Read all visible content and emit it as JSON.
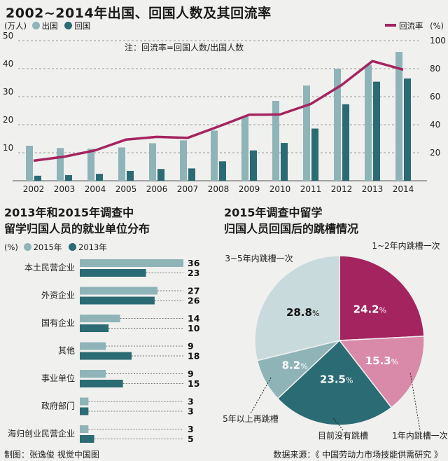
{
  "top": {
    "title": "2002~2014年出国、回国人数及其回流率",
    "unit_left": "(万人)",
    "legend_out": "出国",
    "legend_back": "回国",
    "legend_rate": "回流率",
    "unit_right": "(%)",
    "note": "注：回流率=回国人数/出国人数"
  },
  "chart_data": [
    {
      "type": "bar",
      "title": "2002~2014年出国、回国人数及其回流率",
      "categories": [
        "2002",
        "2003",
        "2004",
        "2005",
        "2006",
        "2007",
        "2008",
        "2009",
        "2010",
        "2011",
        "2012",
        "2013",
        "2014"
      ],
      "series": [
        {
          "name": "出国",
          "axis": "left",
          "values": [
            12.5,
            11.7,
            11.4,
            11.9,
            13.4,
            14.4,
            17.9,
            23.0,
            28.5,
            33.97,
            39.96,
            41.39,
            45.98
          ]
        },
        {
          "name": "回国",
          "axis": "left",
          "values": [
            1.79,
            2.01,
            2.47,
            3.5,
            4.2,
            4.4,
            6.93,
            10.83,
            13.48,
            18.62,
            27.29,
            35.35,
            36.48
          ]
        },
        {
          "name": "回流率",
          "type": "line",
          "axis": "right",
          "values": [
            14.3,
            17.2,
            21.7,
            29.4,
            31.3,
            30.6,
            38.7,
            47.1,
            47.3,
            54.8,
            68.3,
            85.4,
            79.3
          ]
        }
      ],
      "y_left": {
        "range": [
          0,
          50
        ],
        "ticks": [
          10,
          20,
          30,
          40,
          50
        ]
      },
      "y_right": {
        "range": [
          0,
          100
        ],
        "ticks": [
          20,
          40,
          60,
          80,
          100
        ]
      },
      "colors": {
        "out": "#8fb4b8",
        "back": "#2a6b74",
        "rate": "#a4245f"
      }
    },
    {
      "type": "bar",
      "orientation": "horizontal",
      "title": "2013年和2015年调查中留学归国人员的就业单位分布",
      "categories": [
        "本土民营企业",
        "外资企业",
        "国有企业",
        "其他",
        "事业单位",
        "政府部门",
        "海归创业民营企业"
      ],
      "series": [
        {
          "name": "2015年",
          "values": [
            36,
            27,
            14,
            9,
            9,
            3,
            3
          ]
        },
        {
          "name": "2013年",
          "values": [
            23,
            26,
            10,
            18,
            15,
            3,
            5
          ]
        }
      ],
      "unit": "(%)",
      "colors": {
        "y2015": "#8fb4b8",
        "y2013": "#2a6b74"
      }
    },
    {
      "type": "pie",
      "title": "2015年调查中留学归国人员回国后的跳槽情况",
      "slices": [
        {
          "label": "1~2年内跳槽一次",
          "value": 24.2,
          "text": "24.2",
          "color": "#a4245f"
        },
        {
          "label": "1年内跳槽一次",
          "value": 15.3,
          "text": "15.3",
          "color": "#d98aa8"
        },
        {
          "label": "目前没有跳槽",
          "value": 23.5,
          "text": "23.5",
          "color": "#2a6b74"
        },
        {
          "label": "5年以上再跳槽",
          "value": 8.2,
          "text": "8.2",
          "color": "#8fb4b8"
        },
        {
          "label": "3~5年内跳槽一次",
          "value": 28.8,
          "text": "28.8",
          "color": "#c9dadc"
        }
      ],
      "percent_sign": "%"
    }
  ],
  "mid_left": {
    "title_line1": "2013年和2015年调查中",
    "title_line2": "留学归国人员的就业单位分布",
    "unit": "(%)",
    "legend_2015": "2015年",
    "legend_2013": "2013年"
  },
  "mid_right": {
    "title_line1": "2015年调查中留学",
    "title_line2": "归国人员回国后的跳槽情况"
  },
  "footer": {
    "credit": "制图：张逸俊  视觉中国图",
    "source": "数据来源：《 中国劳动力市场技能供需研究 》"
  }
}
